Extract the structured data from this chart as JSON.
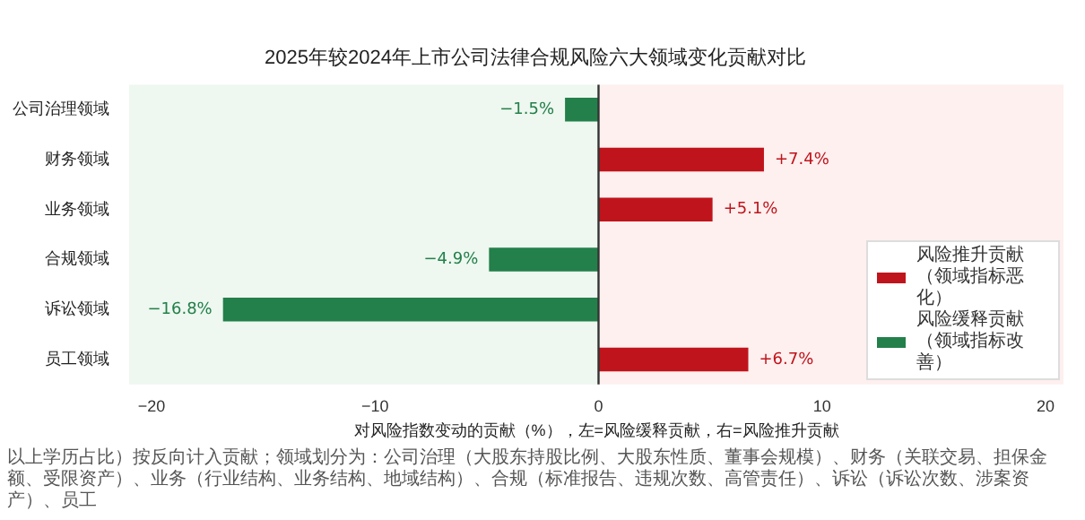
{
  "chart_data": {
    "type": "bar",
    "orientation": "horizontal",
    "title": "2025年较2024年上市公司法律合规风险六大领域变化贡献对比",
    "xlabel": "对风险指数变动的贡献（%），左=风险缓释贡献，右=风险推升贡献",
    "categories": [
      "公司治理领域",
      "财务领域",
      "业务领域",
      "合规领域",
      "诉讼领域",
      "员工领域"
    ],
    "series": [
      {
        "name": "风险推升贡献（领域指标恶化）",
        "color": "#c0141c",
        "values": [
          null,
          7.4,
          5.1,
          null,
          null,
          6.7
        ],
        "value_labels": [
          null,
          "+7.4%",
          "+5.1%",
          null,
          null,
          "+6.7%"
        ]
      },
      {
        "name": "风险缓释贡献（领域指标改善）",
        "color": "#23804a",
        "values": [
          -1.5,
          null,
          null,
          -4.9,
          -16.8,
          null
        ],
        "value_labels": [
          "−1.5%",
          null,
          null,
          "−4.9%",
          "−16.8%",
          null
        ]
      }
    ],
    "xlim": [
      -21,
      20.8
    ],
    "xticks": [
      {
        "value": -20,
        "label": "−20"
      },
      {
        "value": -10,
        "label": "−10"
      },
      0,
      10,
      20
    ],
    "bands": [
      {
        "axis": "x",
        "from": -21,
        "to": 0,
        "color": "#eef7f0"
      },
      {
        "axis": "x",
        "from": 0,
        "to": 20.8,
        "color": "#fdf0ef"
      }
    ],
    "ref_lines": [
      {
        "axis": "x",
        "value": 0,
        "color": "#333333"
      }
    ],
    "legend": "bottom right",
    "grid": false,
    "annotations": [
      "以上学历占比）按反向计入贡献；领域划分为：公司治理（大股东持股比例、大股东性质、董事会规模）、财务（关联交易、担保金额、受限资产）、业务（行业结构、业务结构、地域结构）、合规（标准报告、违规次数、高管责任）、诉讼（诉讼次数、涉案资产）、员工"
    ]
  }
}
